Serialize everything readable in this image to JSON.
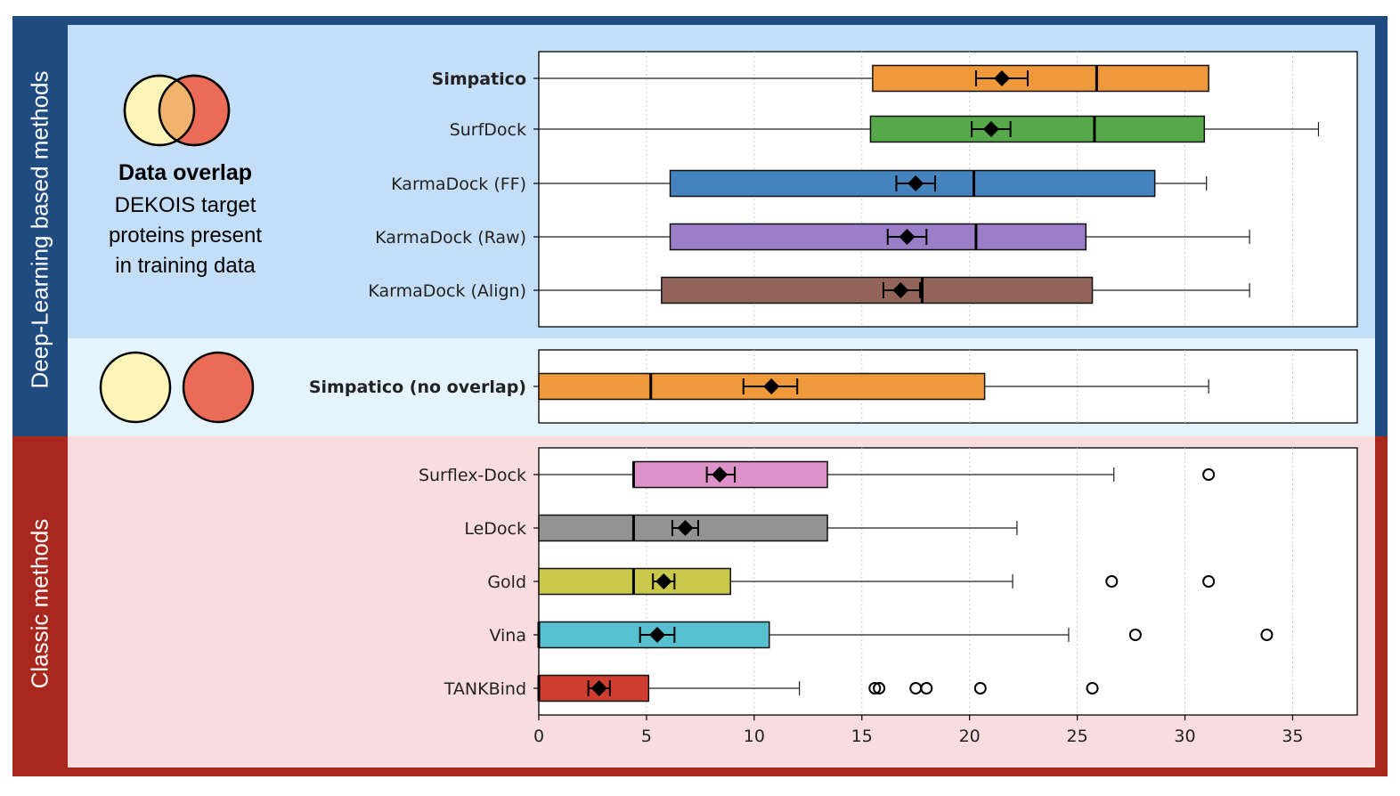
{
  "figure": {
    "side_label_dl": "Deep-Learning based methods",
    "side_label_classic": "Classic methods",
    "overlap_title": "Data overlap",
    "overlap_desc_lines": [
      "DEKOIS target",
      "proteins present",
      "in training data"
    ]
  },
  "colors": {
    "dl_band": "#1f4b80",
    "classic_band": "#a9281d",
    "venn_left": "#fdf5b8",
    "venn_right": "#ea6b56",
    "venn_overlap": "#f0b36b"
  },
  "chart_data": {
    "type": "boxplot",
    "xlim": [
      0,
      38
    ],
    "xticks": [
      0,
      5,
      10,
      15,
      20,
      25,
      30,
      35
    ],
    "grid": "vertical dotted",
    "panels": [
      {
        "name": "deep-learning with overlap",
        "series": [
          {
            "label": "Simpatico",
            "bold": true,
            "color": "#f0993a",
            "whisker_low": 0,
            "q1": 15.5,
            "median": 25.9,
            "q3": 31.1,
            "whisker_high": 31.1,
            "mean": 21.5,
            "ci": [
              20.3,
              22.7
            ],
            "outliers": []
          },
          {
            "label": "SurfDock",
            "bold": false,
            "color": "#57a84a",
            "whisker_low": 0,
            "q1": 15.4,
            "median": 25.8,
            "q3": 30.9,
            "whisker_high": 36.2,
            "mean": 21.0,
            "ci": [
              20.1,
              21.9
            ],
            "outliers": []
          },
          {
            "label": "KarmaDock (FF)",
            "bold": false,
            "color": "#4483bd",
            "whisker_low": 0,
            "q1": 6.1,
            "median": 20.2,
            "q3": 28.6,
            "whisker_high": 31.0,
            "mean": 17.5,
            "ci": [
              16.6,
              18.4
            ],
            "outliers": []
          },
          {
            "label": "KarmaDock (Raw)",
            "bold": false,
            "color": "#9a7ec7",
            "whisker_low": 0,
            "q1": 6.1,
            "median": 20.3,
            "q3": 25.4,
            "whisker_high": 33.0,
            "mean": 17.1,
            "ci": [
              16.2,
              18.0
            ],
            "outliers": []
          },
          {
            "label": "KarmaDock (Align)",
            "bold": false,
            "color": "#93655a",
            "whisker_low": 0,
            "q1": 5.7,
            "median": 17.8,
            "q3": 25.7,
            "whisker_high": 33.0,
            "mean": 16.8,
            "ci": [
              16.0,
              17.7
            ],
            "outliers": []
          }
        ]
      },
      {
        "name": "deep-learning no overlap",
        "series": [
          {
            "label": "Simpatico (no overlap)",
            "bold": true,
            "color": "#f0993a",
            "whisker_low": 0,
            "q1": 0,
            "median": 5.2,
            "q3": 20.7,
            "whisker_high": 31.1,
            "mean": 10.8,
            "ci": [
              9.5,
              12.0
            ],
            "outliers": []
          }
        ]
      },
      {
        "name": "classic methods",
        "series": [
          {
            "label": "Surflex-Dock",
            "bold": false,
            "color": "#df92c9",
            "whisker_low": 0,
            "q1": 4.4,
            "median": 4.4,
            "q3": 13.4,
            "whisker_high": 26.7,
            "mean": 8.4,
            "ci": [
              7.8,
              9.1
            ],
            "outliers": [
              31.1
            ]
          },
          {
            "label": "LeDock",
            "bold": false,
            "color": "#939393",
            "whisker_low": 0,
            "q1": 0,
            "median": 4.4,
            "q3": 13.4,
            "whisker_high": 22.2,
            "mean": 6.8,
            "ci": [
              6.2,
              7.4
            ],
            "outliers": []
          },
          {
            "label": "Gold",
            "bold": false,
            "color": "#c8c84a",
            "whisker_low": 0,
            "q1": 0,
            "median": 4.4,
            "q3": 8.9,
            "whisker_high": 22.0,
            "mean": 5.8,
            "ci": [
              5.3,
              6.3
            ],
            "outliers": [
              26.6,
              31.1
            ]
          },
          {
            "label": "Vina",
            "bold": false,
            "color": "#57c1d0",
            "whisker_low": 0,
            "q1": 0,
            "median": 0,
            "q3": 10.7,
            "whisker_high": 24.6,
            "mean": 5.5,
            "ci": [
              4.7,
              6.3
            ],
            "outliers": [
              27.7,
              33.8
            ]
          },
          {
            "label": "TANKBind",
            "bold": false,
            "color": "#cd3e30",
            "whisker_low": 0,
            "q1": 0,
            "median": 0,
            "q3": 5.1,
            "whisker_high": 12.1,
            "mean": 2.8,
            "ci": [
              2.3,
              3.3
            ],
            "outliers": [
              15.6,
              15.8,
              17.5,
              18.0,
              20.5,
              25.7
            ]
          }
        ]
      }
    ]
  }
}
